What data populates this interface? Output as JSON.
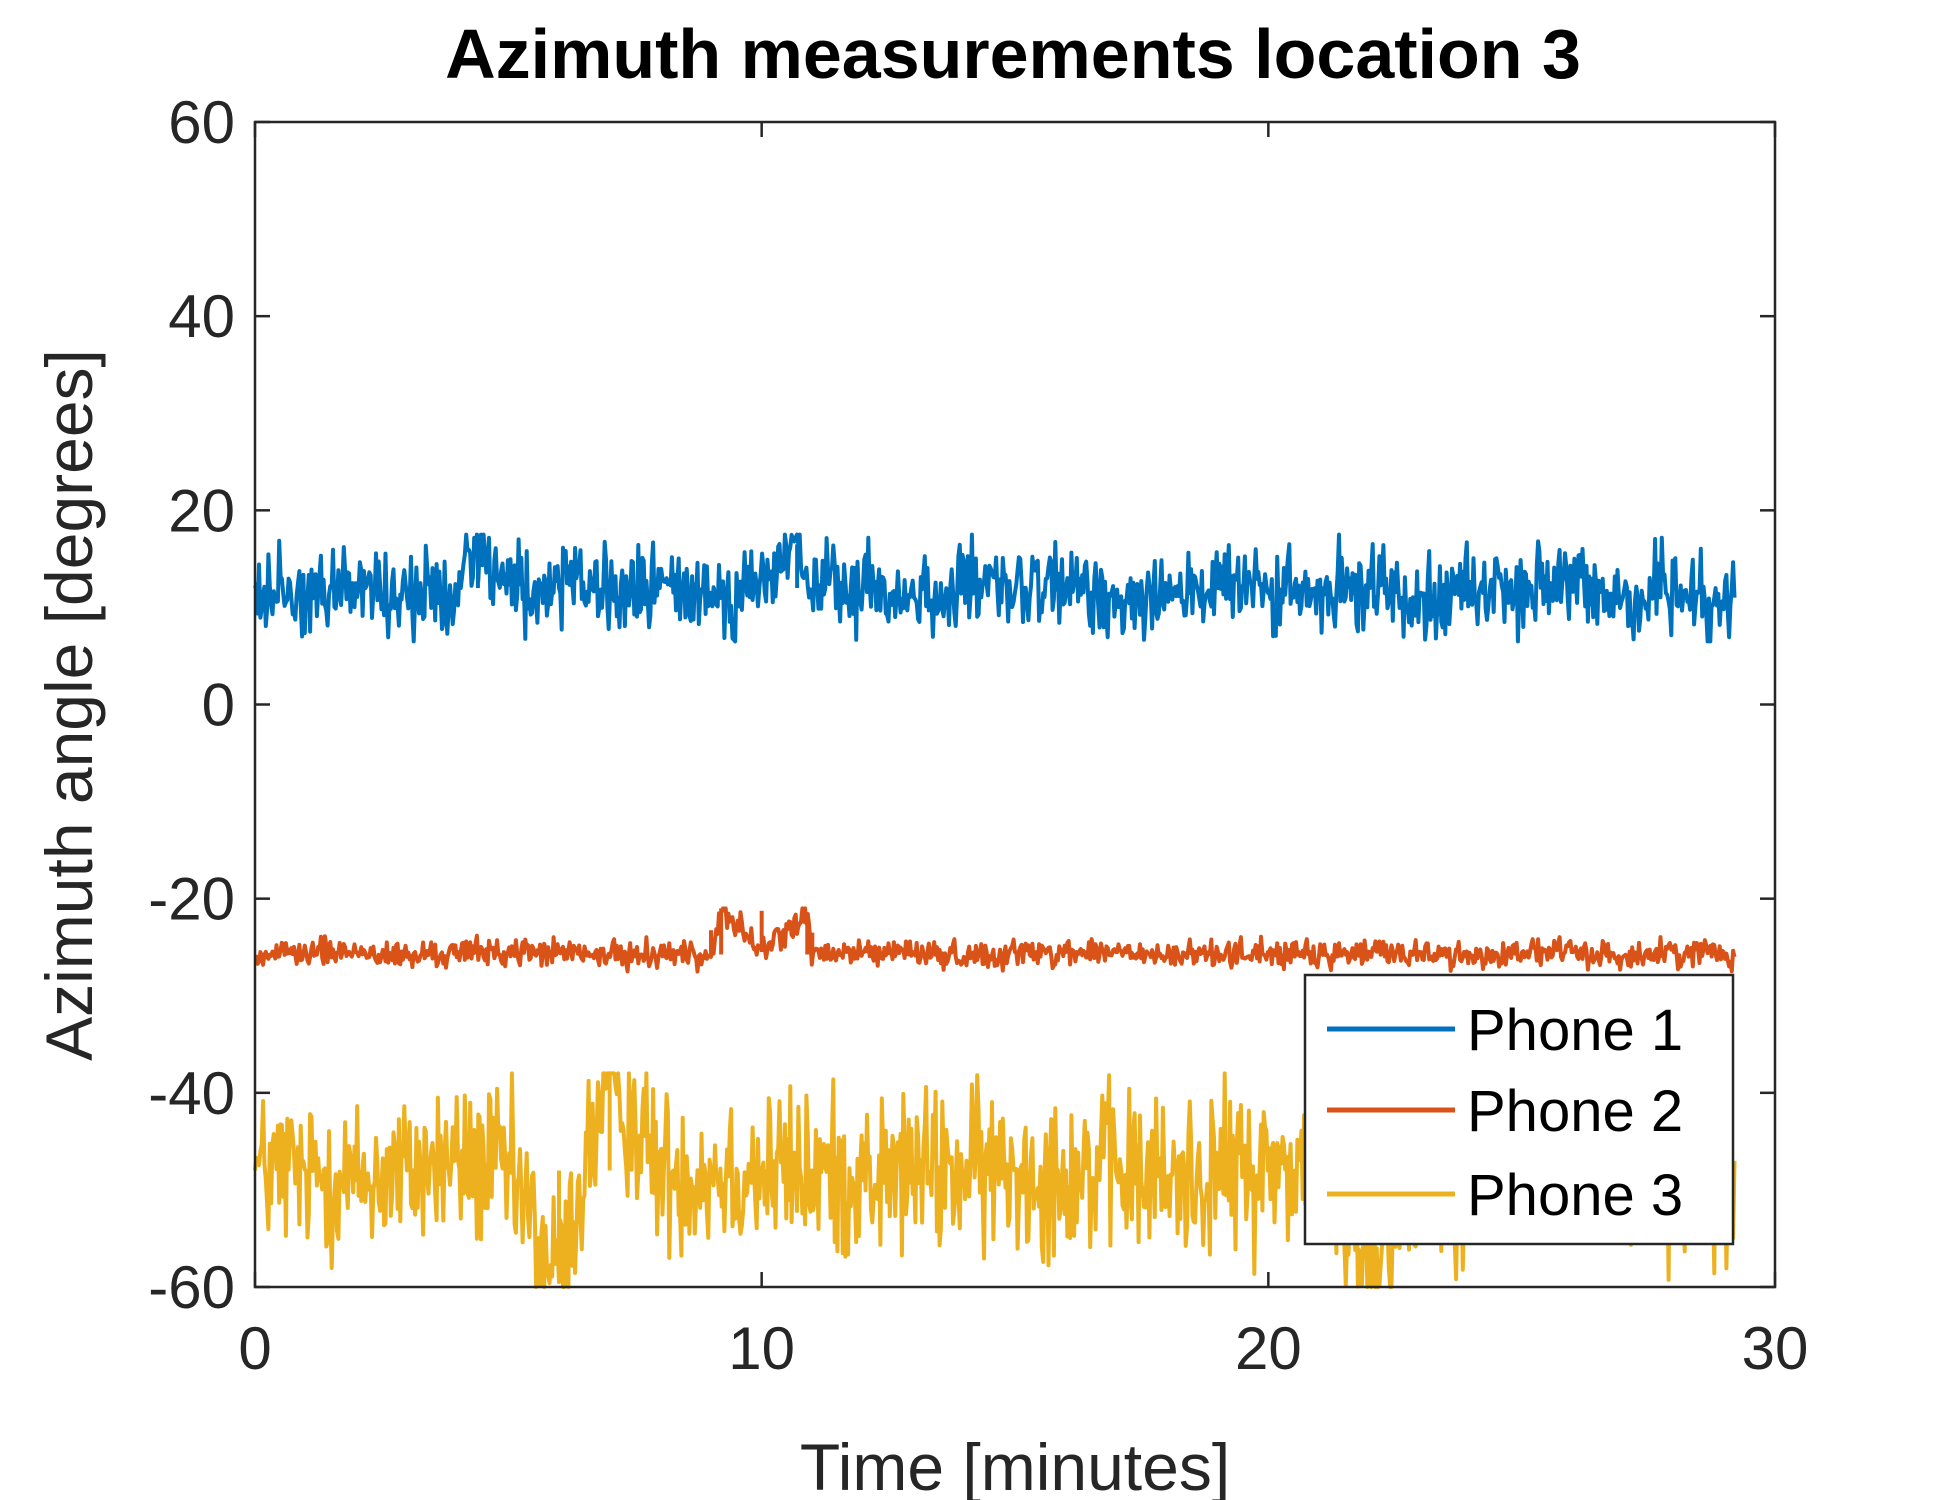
{
  "colors": {
    "phone1": "#0072BD",
    "phone2": "#D95319",
    "phone3": "#EDB120",
    "axis": "#262626"
  },
  "chart_data": {
    "type": "line",
    "title": "Azimuth measurements location 3",
    "xlabel": "Time [minutes]",
    "ylabel": "Azimuth angle [degrees]",
    "xlim": [
      0,
      30
    ],
    "ylim": [
      -60,
      60
    ],
    "xticks": [
      0,
      10,
      20,
      30
    ],
    "xtick_labels": [
      "0",
      "10",
      "20",
      "30"
    ],
    "yticks": [
      60,
      40,
      20,
      0,
      -20,
      -40,
      -60
    ],
    "ytick_labels": [
      "60",
      "40",
      "20",
      "0",
      "-20",
      "-40",
      "-60"
    ],
    "grid": false,
    "legend": {
      "placement": "bottom-right",
      "entries": [
        "Phone 1",
        "Phone 2",
        "Phone 3"
      ]
    },
    "series": [
      {
        "name": "Phone 1",
        "color": "#0072BD",
        "x": [
          0,
          1,
          2,
          3,
          4,
          4.4,
          5,
          6,
          7,
          8,
          9,
          10,
          10.7,
          11,
          12,
          13,
          14,
          15,
          16,
          17,
          18,
          19,
          20,
          21,
          22,
          23,
          24,
          25,
          26,
          27,
          28,
          28.8,
          29.2
        ],
        "y": [
          12,
          11.5,
          12.5,
          11,
          12,
          17.5,
          12,
          12,
          11.5,
          12,
          11.5,
          12,
          16.5,
          12,
          12,
          11,
          12,
          11.5,
          12,
          11,
          12,
          12,
          11.5,
          11,
          12,
          11.5,
          12,
          12,
          12,
          11,
          12,
          11,
          11
        ],
        "noise": 2.2,
        "min": 6.5,
        "max": 17.5
      },
      {
        "name": "Phone 2",
        "color": "#D95319",
        "x": [
          0,
          1,
          2,
          3,
          4,
          5,
          6,
          7,
          8,
          9,
          9.2,
          10,
          10.9,
          11,
          12,
          13,
          14,
          15,
          16,
          17,
          18,
          19,
          20,
          21,
          22,
          23,
          24,
          25,
          26,
          27,
          28,
          29,
          29.2
        ],
        "y": [
          -26,
          -25.5,
          -25.5,
          -26,
          -25.5,
          -25.5,
          -25.5,
          -26,
          -25.5,
          -26,
          -21,
          -25.5,
          -21.5,
          -26,
          -25.5,
          -25.5,
          -26,
          -25.5,
          -25.5,
          -25.5,
          -26,
          -25.5,
          -25.5,
          -26,
          -25.5,
          -25.5,
          -26,
          -25.5,
          -25.5,
          -26,
          -25.5,
          -25.5,
          -26
        ],
        "noise": 0.7,
        "min": -27.5,
        "max": -21
      },
      {
        "name": "Phone 3",
        "color": "#EDB120",
        "x": [
          0,
          1,
          2,
          3,
          4,
          5,
          6,
          6.5,
          7,
          8,
          9,
          10,
          11,
          12,
          13,
          14,
          15,
          16,
          17,
          18,
          19,
          20,
          21,
          22,
          23,
          24,
          25,
          26,
          27,
          28,
          29,
          29.2
        ],
        "y": [
          -48,
          -48,
          -49,
          -48,
          -47,
          -48,
          -59.5,
          -48,
          -38,
          -48,
          -48,
          -48,
          -48,
          -49,
          -48,
          -48,
          -48,
          -48,
          -48,
          -49,
          -48,
          -48,
          -47,
          -57,
          -49,
          -48,
          -48,
          -48,
          -48,
          -48,
          -48,
          -47
        ],
        "noise": 4.2,
        "min": -60,
        "max": -38
      }
    ]
  }
}
